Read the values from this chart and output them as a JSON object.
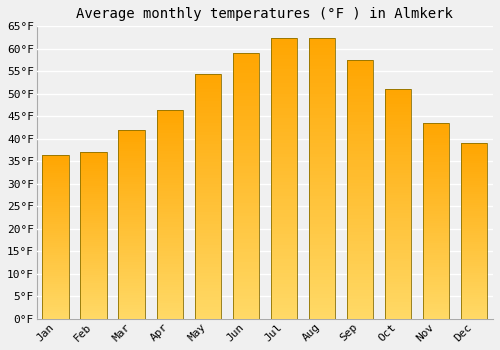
{
  "title": "Average monthly temperatures (°F ) in Almkerk",
  "months": [
    "Jan",
    "Feb",
    "Mar",
    "Apr",
    "May",
    "Jun",
    "Jul",
    "Aug",
    "Sep",
    "Oct",
    "Nov",
    "Dec"
  ],
  "values": [
    36.5,
    37.0,
    42.0,
    46.5,
    54.5,
    59.0,
    62.5,
    62.5,
    57.5,
    51.0,
    43.5,
    39.0
  ],
  "bar_color_top": "#FFA500",
  "bar_color_bottom": "#FFD966",
  "bar_edge_color": "#8B7000",
  "background_color": "#f0f0f0",
  "grid_color": "#ffffff",
  "ylim": [
    0,
    65
  ],
  "ytick_step": 5,
  "title_fontsize": 10,
  "tick_fontsize": 8,
  "font_family": "monospace",
  "bar_width": 0.7
}
